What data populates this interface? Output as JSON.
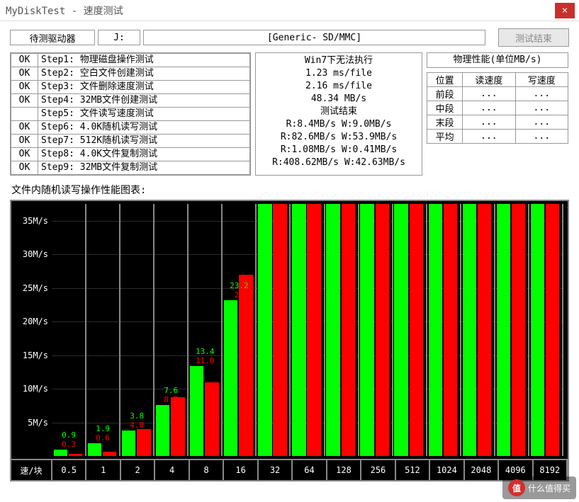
{
  "title": "MyDiskTest - 速度测试",
  "close": "×",
  "drive": {
    "label": "待测驱动器",
    "letter": "J:",
    "desc": "[Generic- SD/MMC]"
  },
  "endTest": "测试结束",
  "steps": [
    {
      "ok": "OK",
      "txt": "Step1: 物理磁盘操作测试"
    },
    {
      "ok": "OK",
      "txt": "Step2: 空白文件创建测试"
    },
    {
      "ok": "OK",
      "txt": "Step3: 文件删除速度测试"
    },
    {
      "ok": "OK",
      "txt": "Step4: 32MB文件创建测试"
    },
    {
      "ok": "",
      "txt": "Step5: 文件读写速度测试"
    },
    {
      "ok": "OK",
      "txt": "Step6: 4.0K随机读写测试"
    },
    {
      "ok": "OK",
      "txt": "Step7: 512K随机读写测试"
    },
    {
      "ok": "OK",
      "txt": "Step8: 4.0K文件复制测试"
    },
    {
      "ok": "OK",
      "txt": "Step9: 32MB文件复制测试"
    }
  ],
  "results": [
    "Win7下无法执行",
    "1.23 ms/file",
    "2.16 ms/file",
    "48.34 MB/s",
    "测试结束",
    "R:8.4MB/s W:9.0MB/s",
    "R:82.6MB/s W:53.9MB/s",
    "R:1.08MB/s W:0.41MB/s",
    "R:408.62MB/s W:42.63MB/s"
  ],
  "perf": {
    "header": "物理性能(单位MB/s)",
    "cols": [
      "位置",
      "读速度",
      "写速度"
    ],
    "rows": [
      [
        "前段",
        "...",
        "..."
      ],
      [
        "中段",
        "...",
        "..."
      ],
      [
        "末段",
        "...",
        "..."
      ],
      [
        "平均",
        "...",
        "..."
      ]
    ]
  },
  "chart": {
    "title": "文件内随机读写操作性能图表:",
    "ymax": 37.5,
    "yticks": [
      5,
      10,
      15,
      20,
      25,
      30,
      35
    ],
    "ylabels": [
      "5M/s",
      "10M/s",
      "15M/s",
      "20M/s",
      "25M/s",
      "30M/s",
      "35M/s"
    ],
    "xheader": "速/块",
    "categories": [
      "0.5",
      "1",
      "2",
      "4",
      "8",
      "16",
      "32",
      "64",
      "128",
      "256",
      "512",
      "1024",
      "2048",
      "4096",
      "8192"
    ],
    "read": [
      0.9,
      1.9,
      3.8,
      7.6,
      13.4,
      23.2,
      37.5,
      37.5,
      37.5,
      37.5,
      37.5,
      37.5,
      37.5,
      37.5,
      37.5
    ],
    "write": [
      0.3,
      0.6,
      4.0,
      8.7,
      11.0,
      27.0,
      37.5,
      37.5,
      37.5,
      37.5,
      37.5,
      37.5,
      37.5,
      37.5,
      37.5
    ],
    "readLabels": [
      "0.9",
      "1.9",
      "3.8",
      "7.6",
      "13.4",
      "23.2",
      "",
      "",
      "",
      "",
      "",
      "",
      "",
      "",
      ""
    ],
    "writeLabels": [
      "0.3",
      "0.6",
      "4.0",
      "8.7",
      "11.0",
      "27",
      "",
      "",
      "",
      "",
      "",
      "",
      "",
      "",
      ""
    ],
    "readColor": "#00ff00",
    "writeColor": "#ff0000",
    "bg": "#000000",
    "gridColor": "#555555"
  },
  "watermark": {
    "circle": "值",
    "text": "什么值得买"
  }
}
